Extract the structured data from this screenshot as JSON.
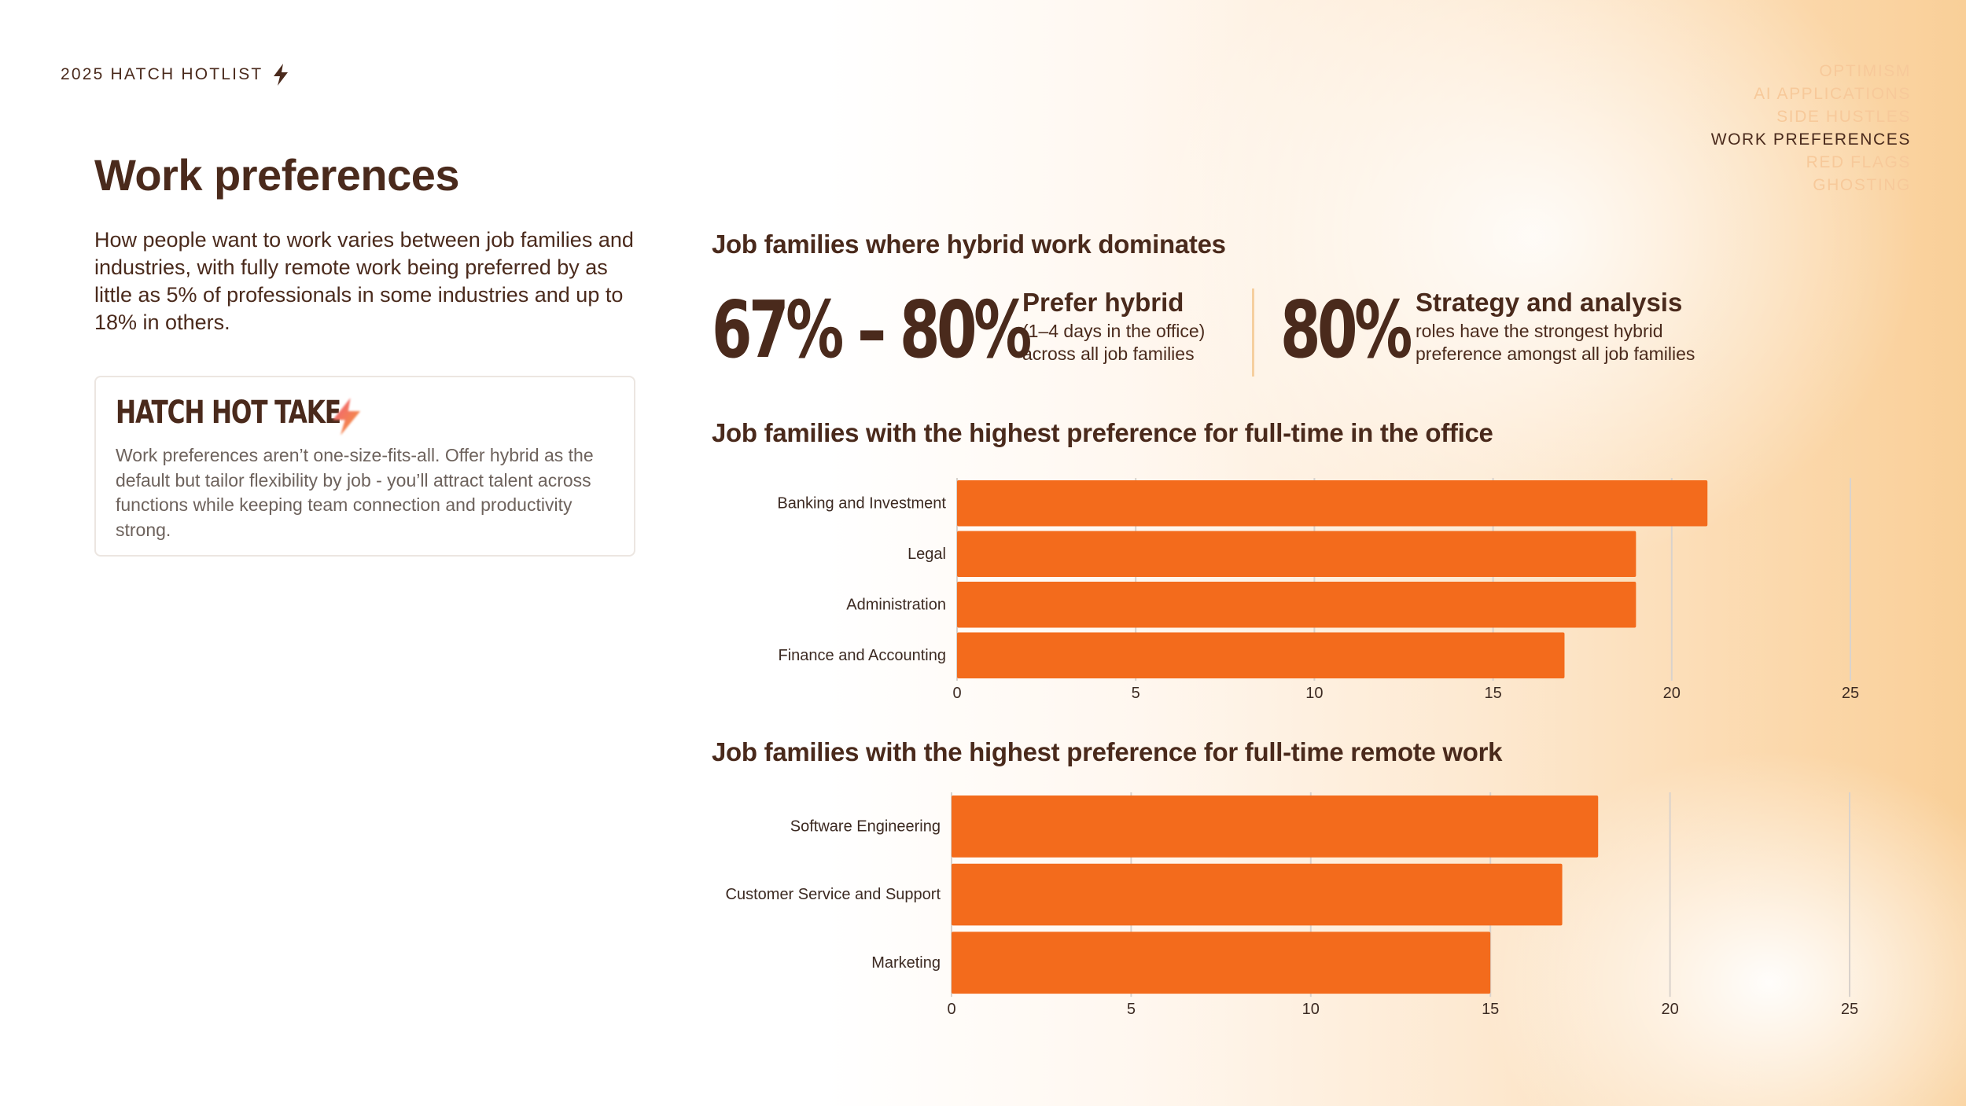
{
  "header": {
    "brand": "2025 HATCH HOTLIST"
  },
  "nav": {
    "items": [
      "OPTIMISM",
      "AI APPLICATIONS",
      "SIDE HUSTLES",
      "WORK PREFERENCES",
      "RED FLAGS",
      "GHOSTING"
    ],
    "active": "WORK PREFERENCES"
  },
  "page": {
    "title": "Work preferences",
    "intro": "How people want to work varies between job families and industries, with fully remote work being preferred by as little as 5% of professionals in some industries and up to 18% in others."
  },
  "hot_take": {
    "title": "HATCH HOT TAKE",
    "text": "Work preferences aren’t one-size-fits-all. Offer hybrid as the default but tailor flexibility by job - you’ll attract talent across functions while keeping team connection and productivity strong."
  },
  "hybrid": {
    "title": "Job families where hybrid work dominates",
    "stat1": {
      "value": "67% – 80%",
      "head": "Prefer hybrid",
      "sub1": "(1–4 days in the office)",
      "sub2": "across all job families"
    },
    "stat2": {
      "value": "80%",
      "head": "Strategy and analysis",
      "sub1": "roles have the strongest hybrid",
      "sub2": "preference amongst all job families"
    }
  },
  "colors": {
    "bar": "#f36b1c",
    "text": "#4a2a1c",
    "nav_inactive": "#f7c99a",
    "grid": "#d9d2cc"
  },
  "chart_data": [
    {
      "type": "bar",
      "orientation": "horizontal",
      "title": "Job families with the highest preference for full-time in the office",
      "categories": [
        "Banking and Investment",
        "Legal",
        "Administration",
        "Finance and Accounting"
      ],
      "values": [
        21,
        19,
        19,
        17
      ],
      "xlim": [
        0,
        25
      ],
      "xticks": [
        0,
        5,
        10,
        15,
        20,
        25
      ],
      "grid": true
    },
    {
      "type": "bar",
      "orientation": "horizontal",
      "title": "Job families with the highest preference for full-time remote work",
      "categories": [
        "Software Engineering",
        "Customer Service and Support",
        "Marketing"
      ],
      "values": [
        18,
        17,
        15
      ],
      "xlim": [
        0,
        25
      ],
      "xticks": [
        0,
        5,
        10,
        15,
        20,
        25
      ],
      "grid": true
    }
  ]
}
